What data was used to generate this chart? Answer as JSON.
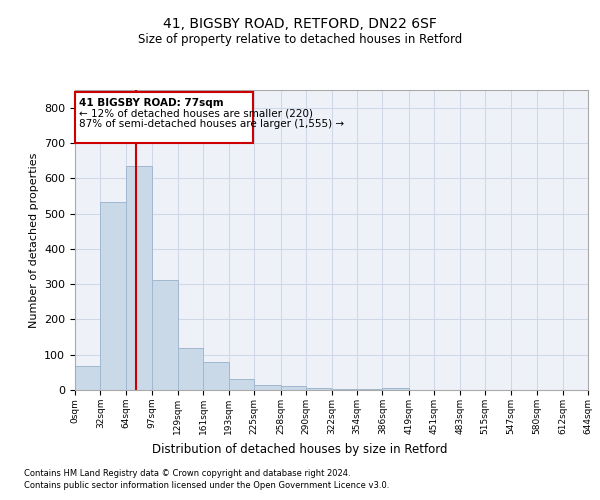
{
  "title_line1": "41, BIGSBY ROAD, RETFORD, DN22 6SF",
  "title_line2": "Size of property relative to detached houses in Retford",
  "xlabel": "Distribution of detached houses by size in Retford",
  "ylabel": "Number of detached properties",
  "footnote1": "Contains HM Land Registry data © Crown copyright and database right 2024.",
  "footnote2": "Contains public sector information licensed under the Open Government Licence v3.0.",
  "annotation_line1": "41 BIGSBY ROAD: 77sqm",
  "annotation_line2": "← 12% of detached houses are smaller (220)",
  "annotation_line3": "87% of semi-detached houses are larger (1,555) →",
  "property_size_sqm": 77,
  "bar_edges": [
    0,
    32,
    64,
    97,
    129,
    161,
    193,
    225,
    258,
    290,
    322,
    354,
    386,
    419,
    451,
    483,
    515,
    547,
    580,
    612,
    644
  ],
  "bar_heights": [
    68,
    533,
    635,
    311,
    120,
    78,
    30,
    15,
    10,
    7,
    4,
    2,
    6,
    1,
    0,
    0,
    0,
    0,
    0,
    0
  ],
  "bar_color": "#c9d9e8",
  "bar_edge_color": "#a0b8d0",
  "grid_color": "#d0d8e8",
  "red_line_color": "#cc0000",
  "annotation_box_color": "#cc0000",
  "background_color": "#eef2f8",
  "ylim": [
    0,
    850
  ],
  "yticks": [
    0,
    100,
    200,
    300,
    400,
    500,
    600,
    700,
    800
  ]
}
